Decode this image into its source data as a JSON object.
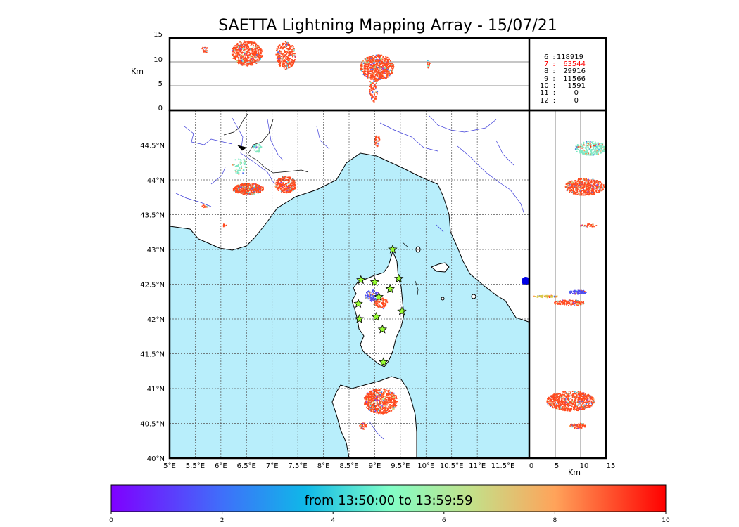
{
  "title": "SAETTA Lightning Mapping Array - 15/07/21",
  "colors": {
    "sea": "#b8eefb",
    "land": "#ffffff",
    "coast": "#000000",
    "rivers": "#3b3bd8",
    "grid": "#555555",
    "station": "#99ff33",
    "highlight": "#ff0000"
  },
  "height_panel": {
    "ylabel": "Km",
    "yticks": [
      "15",
      "10",
      "5",
      "0"
    ],
    "ylim": [
      0,
      15
    ]
  },
  "side_panel": {
    "xlabel": "Km",
    "xticks": [
      "0",
      "5",
      "10",
      "15"
    ],
    "xlim": [
      0,
      15
    ]
  },
  "map": {
    "lon_ticks": [
      "5°E",
      "5.5°E",
      "6°E",
      "6.5°E",
      "7°E",
      "7.5°E",
      "8°E",
      "8.5°E",
      "9°E",
      "9.5°E",
      "10°E",
      "10.5°E",
      "11°E",
      "11.5°E"
    ],
    "lat_ticks": [
      "44.5°N",
      "44°N",
      "43.5°N",
      "43°N",
      "42.5°N",
      "42°N",
      "41.5°N",
      "41°N",
      "40.5°N",
      "40°N"
    ],
    "lon_range": [
      5,
      12
    ],
    "lat_range": [
      40,
      45
    ]
  },
  "stats": [
    {
      "k": "6",
      "v": "118919",
      "highlight": false
    },
    {
      "k": "7",
      "v": "63544",
      "highlight": true
    },
    {
      "k": "8",
      "v": "29916",
      "highlight": false
    },
    {
      "k": "9",
      "v": "11566",
      "highlight": false
    },
    {
      "k": "10",
      "v": "1591",
      "highlight": false
    },
    {
      "k": "11",
      "v": "0",
      "highlight": false
    },
    {
      "k": "12",
      "v": "0",
      "highlight": false
    }
  ],
  "stations": [
    {
      "lon": 9.35,
      "lat": 43.0
    },
    {
      "lon": 8.73,
      "lat": 42.56
    },
    {
      "lon": 9.0,
      "lat": 42.53
    },
    {
      "lon": 9.47,
      "lat": 42.58
    },
    {
      "lon": 9.3,
      "lat": 42.43
    },
    {
      "lon": 9.08,
      "lat": 42.32
    },
    {
      "lon": 8.68,
      "lat": 42.22
    },
    {
      "lon": 9.53,
      "lat": 42.11
    },
    {
      "lon": 8.7,
      "lat": 42.0
    },
    {
      "lon": 9.03,
      "lat": 42.03
    },
    {
      "lon": 9.15,
      "lat": 41.85
    },
    {
      "lon": 9.17,
      "lat": 41.38
    }
  ],
  "colorbar": {
    "label": "from 13:50:00 to 13:59:59",
    "ticks": [
      "0",
      "2",
      "4",
      "6",
      "8",
      "10"
    ],
    "range": [
      0,
      10
    ]
  }
}
